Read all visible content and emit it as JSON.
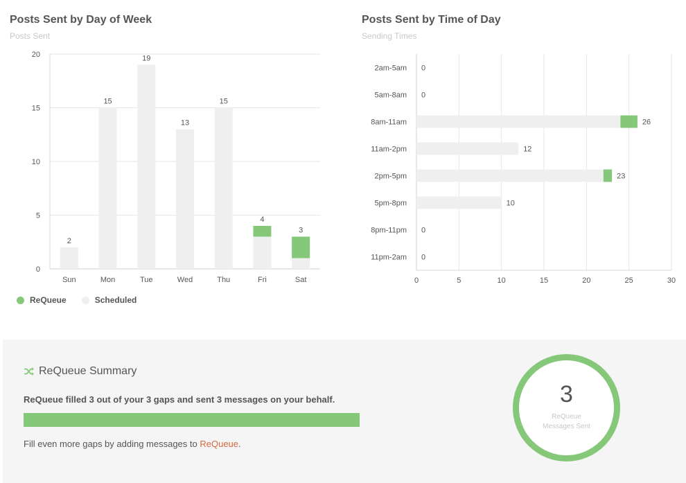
{
  "colors": {
    "requeue": "#86c87a",
    "scheduled": "#efefef",
    "link": "#d2693e"
  },
  "legend": [
    {
      "label": "ReQueue",
      "color": "#86c87a"
    },
    {
      "label": "Scheduled",
      "color": "#efefef"
    }
  ],
  "chart_data": [
    {
      "type": "bar",
      "orientation": "vertical",
      "stacked": true,
      "title": "Posts Sent by Day of Week",
      "subtitle": "Posts Sent",
      "categories": [
        "Sun",
        "Mon",
        "Tue",
        "Wed",
        "Thu",
        "Fri",
        "Sat"
      ],
      "series": [
        {
          "name": "Scheduled",
          "values": [
            2,
            15,
            19,
            13,
            15,
            3,
            1
          ]
        },
        {
          "name": "ReQueue",
          "values": [
            0,
            0,
            0,
            0,
            0,
            1,
            2
          ]
        }
      ],
      "totals": [
        2,
        15,
        19,
        13,
        15,
        4,
        3
      ],
      "ylim": [
        0,
        20
      ],
      "yticks": [
        0,
        5,
        10,
        15,
        20
      ],
      "grid": true,
      "legend": "bottom-left"
    },
    {
      "type": "bar",
      "orientation": "horizontal",
      "stacked": true,
      "title": "Posts Sent by Time of Day",
      "subtitle": "Sending Times",
      "categories": [
        "2am-5am",
        "5am-8am",
        "8am-11am",
        "11am-2pm",
        "2pm-5pm",
        "5pm-8pm",
        "8pm-11pm",
        "11pm-2am"
      ],
      "series": [
        {
          "name": "Scheduled",
          "values": [
            0,
            0,
            24,
            12,
            22,
            10,
            0,
            0
          ]
        },
        {
          "name": "ReQueue",
          "values": [
            0,
            0,
            2,
            0,
            1,
            0,
            0,
            0
          ]
        }
      ],
      "totals": [
        0,
        0,
        26,
        12,
        23,
        10,
        0,
        0
      ],
      "xlim": [
        0,
        30
      ],
      "xticks": [
        0,
        5,
        10,
        15,
        20,
        25,
        30
      ],
      "grid": true
    }
  ],
  "summary": {
    "title": "ReQueue Summary",
    "text": "ReQueue filled 3 out of your 3 gaps and sent 3 messages on your behalf.",
    "progress": 1.0,
    "foot_prefix": "Fill even more gaps by adding messages to ",
    "foot_link": "ReQueue",
    "foot_suffix": ".",
    "ring_value": "3",
    "ring_label_line1": "ReQueue",
    "ring_label_line2": "Messages Sent"
  }
}
